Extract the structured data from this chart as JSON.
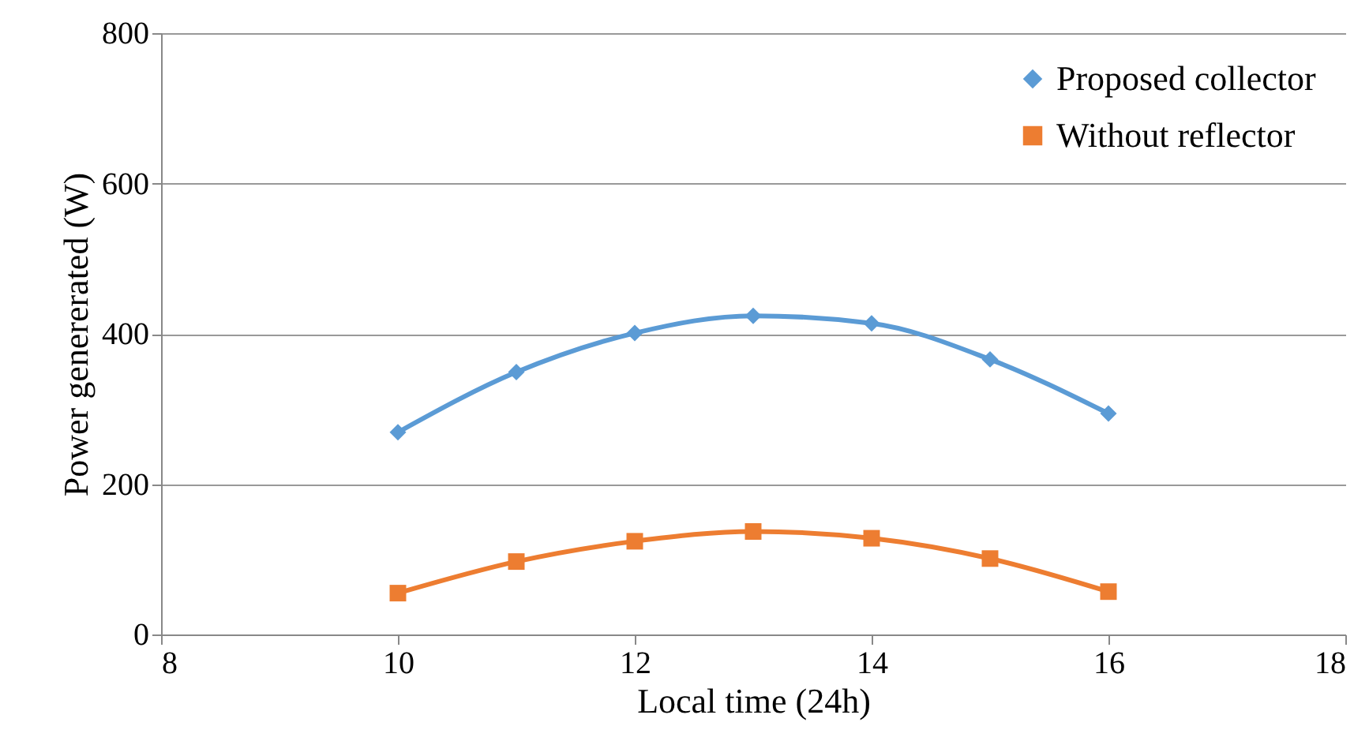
{
  "chart_data": {
    "type": "line",
    "xlabel": "Local time (24h)",
    "ylabel": "Power genererated (W)",
    "x": [
      10,
      11,
      12,
      13,
      14,
      15,
      16
    ],
    "series": [
      {
        "name": "Proposed collector",
        "color": "#5b9bd5",
        "marker": "diamond",
        "values": [
          269,
          349,
          401,
          424,
          414,
          366,
          294
        ]
      },
      {
        "name": "Without reflector",
        "color": "#ed7d31",
        "marker": "square",
        "values": [
          55,
          97,
          124,
          137,
          128,
          101,
          57
        ]
      }
    ],
    "xlim": [
      8,
      18
    ],
    "xticks": [
      8,
      10,
      12,
      14,
      16,
      18
    ],
    "ylim": [
      0,
      800
    ],
    "yticks": [
      0,
      200,
      400,
      600,
      800
    ],
    "grid": "y",
    "legend": "top right",
    "line_style": "solid"
  }
}
